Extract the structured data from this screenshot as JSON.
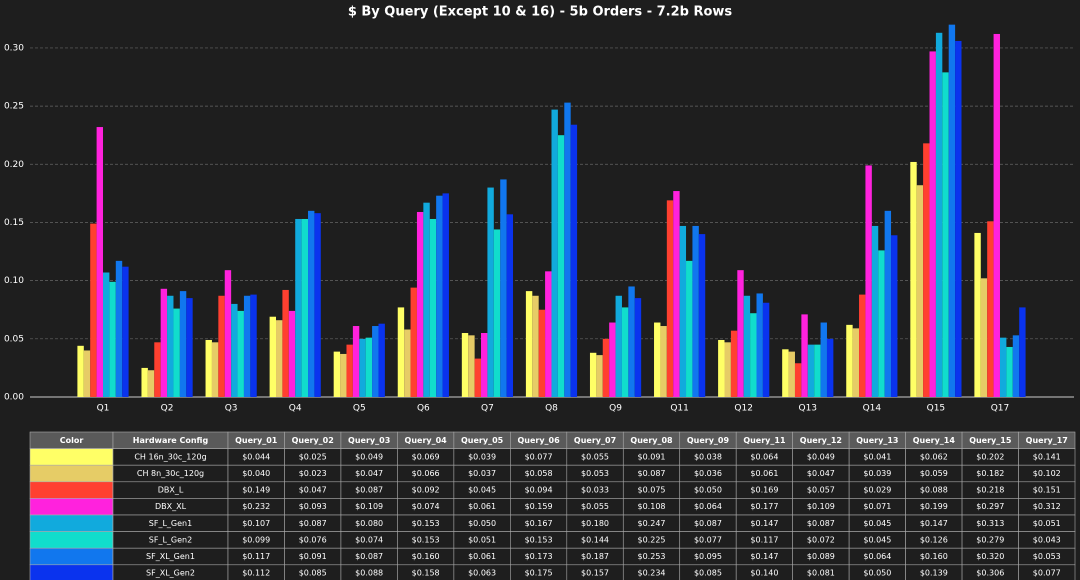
{
  "chart_data": {
    "type": "bar",
    "title": "$ By Query (Except 10 & 16) - 5b Orders - 7.2b Rows",
    "categories": [
      "Q1",
      "Q2",
      "Q3",
      "Q4",
      "Q5",
      "Q6",
      "Q7",
      "Q8",
      "Q9",
      "Q11",
      "Q12",
      "Q13",
      "Q14",
      "Q15",
      "Q17"
    ],
    "ylim": [
      0,
      0.324
    ],
    "yticks": [
      {
        "value": 0,
        "label": "0.00"
      },
      0.05,
      {
        "value": 0.1,
        "label": "0.10"
      },
      0.15,
      {
        "value": 0.2,
        "label": "0.20"
      },
      0.25,
      {
        "value": 0.3,
        "label": "0.30"
      }
    ],
    "grid": true,
    "series": [
      {
        "name": "CH 16n_30c_120g",
        "color": "#ffff66",
        "values": [
          0.044,
          0.025,
          0.049,
          0.069,
          0.039,
          0.077,
          0.055,
          0.091,
          0.038,
          0.064,
          0.049,
          0.041,
          0.062,
          0.202,
          0.141
        ],
        "value_labels": [
          "$0.044",
          "$0.025",
          "$0.049",
          "$0.069",
          "$0.039",
          "$0.077",
          "$0.055",
          "$0.091",
          "$0.038",
          "$0.064",
          "$0.049",
          "$0.041",
          "$0.062",
          "$0.202",
          "$0.141"
        ]
      },
      {
        "name": "CH 8n_30c_120g",
        "color": "#e6cc66",
        "values": [
          0.04,
          0.023,
          0.047,
          0.066,
          0.037,
          0.058,
          0.053,
          0.087,
          0.036,
          0.061,
          0.047,
          0.039,
          0.059,
          0.182,
          0.102
        ],
        "value_labels": [
          "$0.040",
          "$0.023",
          "$0.047",
          "$0.066",
          "$0.037",
          "$0.058",
          "$0.053",
          "$0.087",
          "$0.036",
          "$0.061",
          "$0.047",
          "$0.039",
          "$0.059",
          "$0.182",
          "$0.102"
        ]
      },
      {
        "name": "DBX_L",
        "color": "#ff4030",
        "values": [
          0.149,
          0.047,
          0.087,
          0.092,
          0.045,
          0.094,
          0.033,
          0.075,
          0.05,
          0.169,
          0.057,
          0.029,
          0.088,
          0.218,
          0.151
        ],
        "value_labels": [
          "$0.149",
          "$0.047",
          "$0.087",
          "$0.092",
          "$0.045",
          "$0.094",
          "$0.033",
          "$0.075",
          "$0.050",
          "$0.169",
          "$0.057",
          "$0.029",
          "$0.088",
          "$0.218",
          "$0.151"
        ]
      },
      {
        "name": "DBX_XL",
        "color": "#ff22dd",
        "values": [
          0.232,
          0.093,
          0.109,
          0.074,
          0.061,
          0.159,
          0.055,
          0.108,
          0.064,
          0.177,
          0.109,
          0.071,
          0.199,
          0.297,
          0.312
        ],
        "value_labels": [
          "$0.232",
          "$0.093",
          "$0.109",
          "$0.074",
          "$0.061",
          "$0.159",
          "$0.055",
          "$0.108",
          "$0.064",
          "$0.177",
          "$0.109",
          "$0.071",
          "$0.199",
          "$0.297",
          "$0.312"
        ]
      },
      {
        "name": "SF_L_Gen1",
        "color": "#11aadd",
        "values": [
          0.107,
          0.087,
          0.08,
          0.153,
          0.05,
          0.167,
          0.18,
          0.247,
          0.087,
          0.147,
          0.087,
          0.045,
          0.147,
          0.313,
          0.051
        ],
        "value_labels": [
          "$0.107",
          "$0.087",
          "$0.080",
          "$0.153",
          "$0.050",
          "$0.167",
          "$0.180",
          "$0.247",
          "$0.087",
          "$0.147",
          "$0.087",
          "$0.045",
          "$0.147",
          "$0.313",
          "$0.051"
        ]
      },
      {
        "name": "SF_L_Gen2",
        "color": "#11ddcc",
        "values": [
          0.099,
          0.076,
          0.074,
          0.153,
          0.051,
          0.153,
          0.144,
          0.225,
          0.077,
          0.117,
          0.072,
          0.045,
          0.126,
          0.279,
          0.043
        ],
        "value_labels": [
          "$0.099",
          "$0.076",
          "$0.074",
          "$0.153",
          "$0.051",
          "$0.153",
          "$0.144",
          "$0.225",
          "$0.077",
          "$0.117",
          "$0.072",
          "$0.045",
          "$0.126",
          "$0.279",
          "$0.043"
        ]
      },
      {
        "name": "SF_XL_Gen1",
        "color": "#1177ee",
        "values": [
          0.117,
          0.091,
          0.087,
          0.16,
          0.061,
          0.173,
          0.187,
          0.253,
          0.095,
          0.147,
          0.089,
          0.064,
          0.16,
          0.32,
          0.053
        ],
        "value_labels": [
          "$0.117",
          "$0.091",
          "$0.087",
          "$0.160",
          "$0.061",
          "$0.173",
          "$0.187",
          "$0.253",
          "$0.095",
          "$0.147",
          "$0.089",
          "$0.064",
          "$0.160",
          "$0.320",
          "$0.053"
        ]
      },
      {
        "name": "SF_XL_Gen2",
        "color": "#0a33ee",
        "values": [
          0.112,
          0.085,
          0.088,
          0.158,
          0.063,
          0.175,
          0.157,
          0.234,
          0.085,
          0.14,
          0.081,
          0.05,
          0.139,
          0.306,
          0.077
        ],
        "value_labels": [
          "$0.112",
          "$0.085",
          "$0.088",
          "$0.158",
          "$0.063",
          "$0.175",
          "$0.157",
          "$0.234",
          "$0.085",
          "$0.140",
          "$0.081",
          "$0.050",
          "$0.139",
          "$0.306",
          "$0.077"
        ]
      }
    ]
  },
  "table": {
    "columns": [
      "Color",
      "Hardware Config",
      "Query_01",
      "Query_02",
      "Query_03",
      "Query_04",
      "Query_05",
      "Query_06",
      "Query_07",
      "Query_08",
      "Query_09",
      "Query_11",
      "Query_12",
      "Query_13",
      "Query_14",
      "Query_15",
      "Query_17"
    ]
  }
}
